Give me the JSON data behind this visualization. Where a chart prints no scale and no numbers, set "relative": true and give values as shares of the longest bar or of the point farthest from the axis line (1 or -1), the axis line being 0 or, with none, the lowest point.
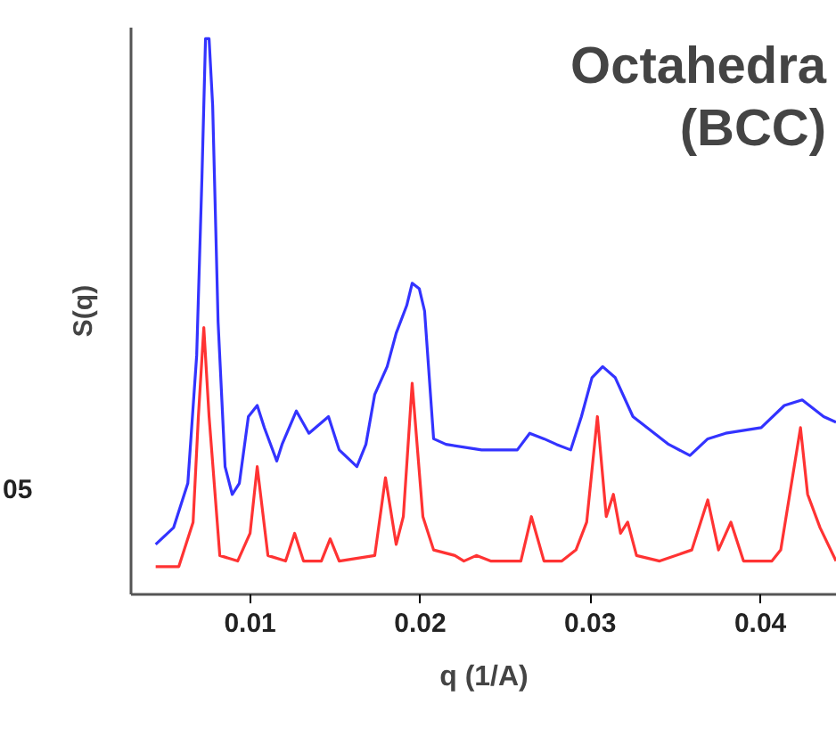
{
  "chart_data": {
    "type": "line",
    "title": "Octahedra\n(BCC)",
    "xlabel": "q (1/A)",
    "ylabel": "S(q)",
    "relative": true,
    "annotations": [
      "05"
    ],
    "xlim": [
      0.003,
      0.0445
    ],
    "xticks": [
      0.01,
      0.02,
      0.03,
      0.04
    ],
    "grid": false,
    "tick_labels": "x",
    "marker": "none",
    "line_style": "solid",
    "series": [
      {
        "color": "#3333ff",
        "x": [
          0.00445,
          0.0055,
          0.00634,
          0.00686,
          0.00717,
          0.00738,
          0.00759,
          0.0078,
          0.00812,
          0.00853,
          0.00895,
          0.00937,
          0.0099,
          0.01042,
          0.01084,
          0.01157,
          0.01188,
          0.01272,
          0.01346,
          0.01461,
          0.01524,
          0.01628,
          0.01681,
          0.01733,
          0.01806,
          0.01859,
          0.01921,
          0.01953,
          0.01995,
          0.02026,
          0.02079,
          0.02152,
          0.02361,
          0.02571,
          0.02644,
          0.02728,
          0.02801,
          0.02885,
          0.02948,
          0.0301,
          0.03073,
          0.03147,
          0.03251,
          0.03335,
          0.03461,
          0.03586,
          0.03691,
          0.03796,
          0.04005,
          0.04141,
          0.04246,
          0.04372,
          0.04445
        ],
        "values": [
          0.09,
          0.12,
          0.2,
          0.43,
          0.75,
          1.0,
          1.0,
          0.88,
          0.49,
          0.23,
          0.18,
          0.2,
          0.32,
          0.34,
          0.3,
          0.24,
          0.27,
          0.33,
          0.29,
          0.32,
          0.26,
          0.23,
          0.27,
          0.36,
          0.41,
          0.47,
          0.52,
          0.56,
          0.55,
          0.51,
          0.28,
          0.27,
          0.26,
          0.26,
          0.29,
          0.28,
          0.27,
          0.26,
          0.32,
          0.39,
          0.41,
          0.39,
          0.32,
          0.3,
          0.27,
          0.25,
          0.28,
          0.29,
          0.3,
          0.34,
          0.35,
          0.32,
          0.31
        ]
      },
      {
        "color": "#ff3333",
        "x": [
          0.00445,
          0.00581,
          0.00665,
          0.00696,
          0.00728,
          0.00759,
          0.00822,
          0.00927,
          0.01,
          0.01042,
          0.01105,
          0.01209,
          0.01262,
          0.01314,
          0.01419,
          0.01471,
          0.01524,
          0.01733,
          0.01796,
          0.01859,
          0.01901,
          0.01953,
          0.02016,
          0.02079,
          0.02204,
          0.02257,
          0.0233,
          0.02414,
          0.02497,
          0.02592,
          0.02654,
          0.02728,
          0.02833,
          0.02916,
          0.02979,
          0.03042,
          0.03094,
          0.03136,
          0.03178,
          0.0322,
          0.03272,
          0.03408,
          0.03597,
          0.03691,
          0.03754,
          0.03827,
          0.03901,
          0.04068,
          0.0412,
          0.04236,
          0.04278,
          0.04351,
          0.04445
        ],
        "values": [
          0.05,
          0.05,
          0.13,
          0.32,
          0.48,
          0.32,
          0.07,
          0.06,
          0.11,
          0.23,
          0.07,
          0.06,
          0.11,
          0.06,
          0.06,
          0.1,
          0.06,
          0.07,
          0.21,
          0.09,
          0.14,
          0.38,
          0.14,
          0.08,
          0.07,
          0.06,
          0.07,
          0.06,
          0.06,
          0.06,
          0.14,
          0.06,
          0.06,
          0.08,
          0.13,
          0.32,
          0.14,
          0.18,
          0.11,
          0.13,
          0.07,
          0.06,
          0.08,
          0.17,
          0.08,
          0.13,
          0.06,
          0.06,
          0.08,
          0.3,
          0.18,
          0.12,
          0.06
        ]
      }
    ]
  }
}
